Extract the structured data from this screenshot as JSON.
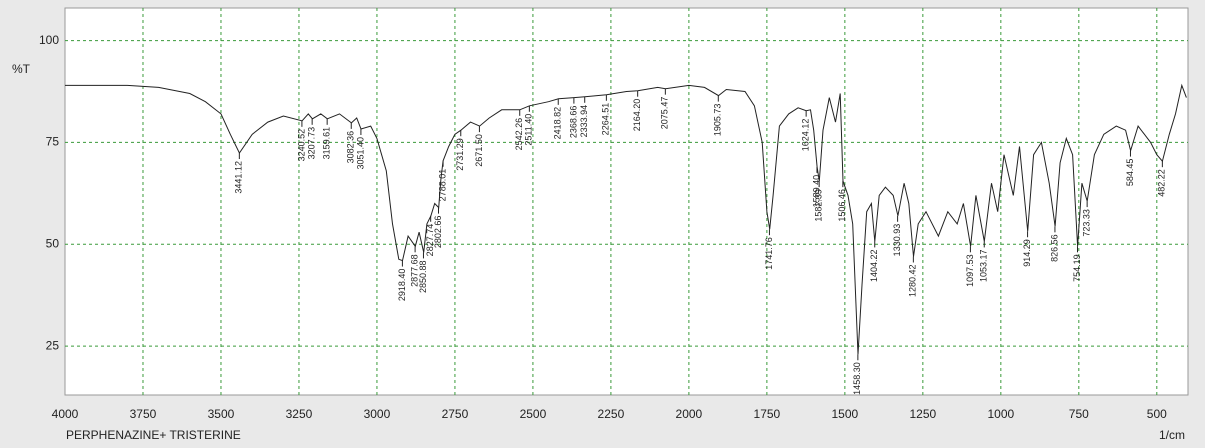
{
  "chart_data": {
    "type": "line",
    "x_label": "PERPHENAZINE+ TRISTERINE",
    "x_unit": "1/cm",
    "y_label": "%T",
    "xlim": [
      4000,
      400
    ],
    "ylim": [
      13,
      108
    ],
    "xticks": [
      4000,
      3750,
      3500,
      3250,
      3000,
      2750,
      2500,
      2250,
      2000,
      1750,
      1500,
      1250,
      1000,
      750,
      500
    ],
    "yticks": [
      25,
      50,
      75,
      100
    ],
    "grid": true,
    "series": [
      {
        "color": "#222222",
        "x": [
          4000,
          3800,
          3700,
          3600,
          3550,
          3500,
          3470,
          3441,
          3400,
          3350,
          3300,
          3240,
          3220,
          3207,
          3180,
          3159,
          3120,
          3082,
          3065,
          3051,
          3020,
          3000,
          2970,
          2950,
          2930,
          2918,
          2900,
          2877,
          2865,
          2850,
          2840,
          2827,
          2815,
          2802,
          2795,
          2788,
          2770,
          2750,
          2731,
          2700,
          2671,
          2640,
          2600,
          2542,
          2511,
          2450,
          2418,
          2368,
          2333,
          2264,
          2200,
          2164,
          2100,
          2075,
          2000,
          1950,
          1905,
          1880,
          1820,
          1790,
          1765,
          1750,
          1741,
          1730,
          1710,
          1680,
          1650,
          1624,
          1610,
          1600,
          1589,
          1582,
          1570,
          1550,
          1530,
          1515,
          1506,
          1490,
          1475,
          1458,
          1445,
          1430,
          1415,
          1404,
          1390,
          1370,
          1345,
          1330,
          1310,
          1295,
          1280,
          1265,
          1240,
          1200,
          1170,
          1140,
          1120,
          1097,
          1080,
          1053,
          1030,
          1010,
          990,
          960,
          940,
          914,
          895,
          870,
          845,
          826,
          810,
          790,
          770,
          754,
          740,
          723,
          700,
          670,
          630,
          600,
          584,
          560,
          520,
          500,
          482,
          460,
          440,
          420,
          405
        ],
        "values": [
          89,
          89,
          88.5,
          87,
          85,
          82,
          77,
          72.4,
          77,
          80,
          81.5,
          80.3,
          82,
          80.8,
          82,
          80.8,
          82,
          79.8,
          81,
          78.3,
          79,
          76,
          68,
          55,
          46.3,
          46,
          52,
          49.5,
          53,
          48,
          55,
          57,
          60,
          59,
          66,
          70.5,
          74,
          77,
          78,
          80,
          79,
          81,
          83,
          83,
          84,
          85,
          85.7,
          86,
          86.2,
          86.7,
          87.5,
          87.7,
          88.5,
          88.2,
          89,
          88.5,
          86.5,
          88,
          87.5,
          84,
          75,
          58,
          53.7,
          62,
          79,
          82,
          83.5,
          82.8,
          83,
          78,
          69,
          65.5,
          78,
          86,
          80,
          87,
          65.5,
          62,
          55,
          23,
          40,
          58,
          60,
          50.7,
          62,
          64,
          62,
          57,
          65,
          60,
          47,
          55,
          58,
          52,
          58,
          55,
          60,
          49.5,
          62,
          50.7,
          65,
          58,
          72,
          62,
          74,
          53.2,
          72,
          75,
          65,
          54.4,
          70,
          76,
          72,
          49.5,
          65,
          60.6,
          72,
          77,
          79,
          78,
          73,
          79,
          75,
          72,
          70.4,
          77,
          82,
          89,
          86
        ]
      }
    ],
    "peaks": [
      3441.12,
      3240.52,
      3207.73,
      3159.61,
      3082.36,
      3051.4,
      2918.4,
      2877.68,
      2850.88,
      2827.74,
      2802.66,
      2788.01,
      2731.29,
      2671.5,
      2542.26,
      2511.4,
      2418.82,
      2368.66,
      2333.94,
      2264.51,
      2164.2,
      2075.47,
      1905.73,
      1741.76,
      1624.12,
      1589.4,
      1582.39,
      1506.46,
      1458.3,
      1404.22,
      1330.93,
      1280.42,
      1097.53,
      1053.17,
      914.29,
      826.56,
      754.19,
      723.33,
      584.45,
      482.22
    ],
    "peak_values": [
      72.4,
      80.3,
      80.8,
      80.8,
      79.8,
      78.3,
      46,
      49.5,
      48,
      57,
      59,
      70.5,
      78,
      79,
      83,
      84,
      85.7,
      86,
      86.2,
      86.7,
      87.7,
      88.2,
      86.5,
      53.7,
      82.8,
      69,
      65.5,
      65.5,
      23,
      50.7,
      57,
      47,
      49.5,
      50.7,
      53.2,
      54.4,
      49.5,
      60.6,
      73,
      70.4
    ],
    "peak_labels": [
      "3441.12",
      "3240.52",
      "3207.73",
      "3159.61",
      "3082.36",
      "3051.40",
      "2918.40",
      "2877.68",
      "2850.88",
      "2827.74",
      "2802.66",
      "2788.01",
      "2731.29",
      "2671.50",
      "2542.26",
      "2511.40",
      "2418.82",
      "2368.66",
      "2333.94",
      "2264.51",
      "2164.20",
      "2075.47",
      "1905.73",
      "1741.76",
      "1624.12",
      "1589.40",
      "1582.39",
      "1506.46",
      "1458.30",
      "1404.22",
      "1330.93",
      "1280.42",
      "1097.53",
      "1053.17",
      "914.29",
      "826.56",
      "754.19",
      "723.33",
      "584.45",
      "482.22"
    ]
  }
}
